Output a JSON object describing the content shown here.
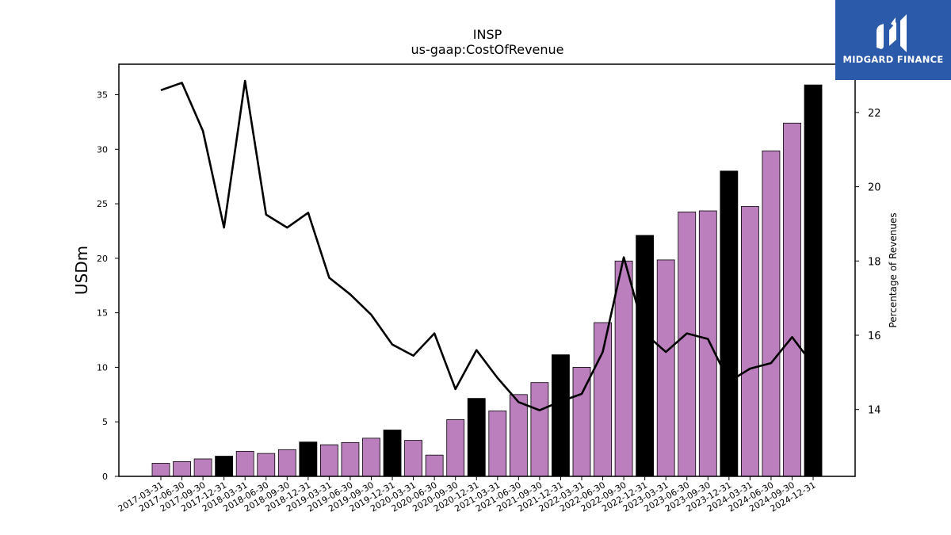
{
  "chart_data": {
    "type": "bar+line",
    "title": "INSP",
    "subtitle": "us-gaap:CostOfRevenue",
    "ylabel": "USDm",
    "y2label": "Percentage of Revenues",
    "ylim": [
      0,
      37.8
    ],
    "y2lim": [
      12.2,
      23.3
    ],
    "yticks": [
      0,
      5,
      10,
      15,
      20,
      25,
      30,
      35
    ],
    "y2ticks": [
      14,
      16,
      18,
      20,
      22
    ],
    "categories": [
      "2017-03-31",
      "2017-06-30",
      "2017-09-30",
      "2017-12-31",
      "2018-03-31",
      "2018-06-30",
      "2018-09-30",
      "2018-12-31",
      "2019-03-31",
      "2019-06-30",
      "2019-09-30",
      "2019-12-31",
      "2020-03-31",
      "2020-06-30",
      "2020-09-30",
      "2020-12-31",
      "2021-03-31",
      "2021-06-30",
      "2021-09-30",
      "2021-12-31",
      "2022-03-31",
      "2022-06-30",
      "2022-09-30",
      "2022-12-31",
      "2023-03-31",
      "2023-06-30",
      "2023-09-30",
      "2023-12-31",
      "2024-03-31",
      "2024-06-30",
      "2024-09-30",
      "2024-12-31"
    ],
    "series": [
      {
        "kind": "bar",
        "axis": "left",
        "values": [
          1.2,
          1.35,
          1.6,
          1.85,
          2.3,
          2.1,
          2.45,
          3.15,
          2.9,
          3.1,
          3.5,
          4.25,
          3.3,
          1.95,
          5.2,
          7.15,
          6.0,
          7.5,
          8.6,
          11.15,
          10.0,
          14.1,
          19.75,
          22.1,
          19.85,
          24.25,
          24.35,
          28.0,
          24.75,
          29.85,
          32.4,
          35.9
        ],
        "highlight": [
          false,
          false,
          false,
          true,
          false,
          false,
          false,
          true,
          false,
          false,
          false,
          true,
          false,
          false,
          false,
          true,
          false,
          false,
          false,
          true,
          false,
          false,
          false,
          true,
          false,
          false,
          false,
          true,
          false,
          false,
          false,
          true
        ]
      },
      {
        "kind": "line",
        "axis": "right",
        "values": [
          22.6,
          22.8,
          21.5,
          18.9,
          22.85,
          19.25,
          18.9,
          19.3,
          17.55,
          17.1,
          16.55,
          15.75,
          15.45,
          16.05,
          14.55,
          15.6,
          14.85,
          14.2,
          13.98,
          14.22,
          14.42,
          15.55,
          18.1,
          16.05,
          15.55,
          16.05,
          15.9,
          14.75,
          15.1,
          15.25,
          15.95,
          15.2
        ]
      }
    ],
    "colors": {
      "bar": "#bb7fbd",
      "bar_highlight": "#000000",
      "line": "#000000"
    }
  },
  "logo": {
    "text": "MIDGARD FINANCE",
    "bg": "#2b5aab"
  }
}
